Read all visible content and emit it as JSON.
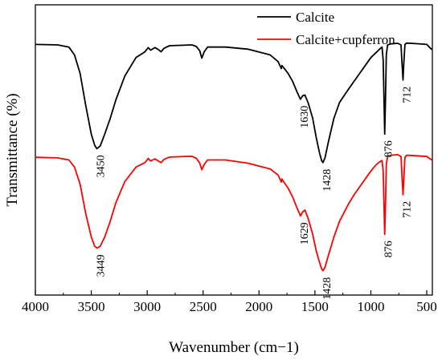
{
  "chart_data": {
    "type": "line",
    "xlabel": "Wavenumber (cm−1)",
    "ylabel": "Transmittance (%)",
    "xlim": [
      4000,
      450
    ],
    "x_reversed": true,
    "xticks": [
      4000,
      3500,
      3000,
      2500,
      2000,
      1500,
      1000,
      500
    ],
    "yticks_shown": false,
    "legend_position": "top-right",
    "series": [
      {
        "name": "Calcite",
        "color": "#000000",
        "points": [
          [
            4000,
            0.84
          ],
          [
            3800,
            0.838
          ],
          [
            3700,
            0.83
          ],
          [
            3650,
            0.8
          ],
          [
            3600,
            0.73
          ],
          [
            3550,
            0.61
          ],
          [
            3500,
            0.5
          ],
          [
            3470,
            0.458
          ],
          [
            3450,
            0.445
          ],
          [
            3420,
            0.455
          ],
          [
            3380,
            0.5
          ],
          [
            3330,
            0.56
          ],
          [
            3280,
            0.63
          ],
          [
            3200,
            0.72
          ],
          [
            3100,
            0.79
          ],
          [
            3020,
            0.812
          ],
          [
            2990,
            0.828
          ],
          [
            2970,
            0.818
          ],
          [
            2930,
            0.828
          ],
          [
            2900,
            0.82
          ],
          [
            2875,
            0.812
          ],
          [
            2850,
            0.825
          ],
          [
            2800,
            0.835
          ],
          [
            2600,
            0.838
          ],
          [
            2560,
            0.832
          ],
          [
            2530,
            0.815
          ],
          [
            2512,
            0.788
          ],
          [
            2490,
            0.812
          ],
          [
            2460,
            0.83
          ],
          [
            2300,
            0.83
          ],
          [
            2100,
            0.822
          ],
          [
            1900,
            0.8
          ],
          [
            1830,
            0.775
          ],
          [
            1800,
            0.748
          ],
          [
            1795,
            0.76
          ],
          [
            1780,
            0.752
          ],
          [
            1740,
            0.73
          ],
          [
            1700,
            0.7
          ],
          [
            1660,
            0.66
          ],
          [
            1630,
            0.632
          ],
          [
            1610,
            0.645
          ],
          [
            1590,
            0.648
          ],
          [
            1560,
            0.618
          ],
          [
            1520,
            0.56
          ],
          [
            1490,
            0.49
          ],
          [
            1460,
            0.43
          ],
          [
            1440,
            0.4
          ],
          [
            1428,
            0.392
          ],
          [
            1410,
            0.41
          ],
          [
            1380,
            0.47
          ],
          [
            1330,
            0.56
          ],
          [
            1280,
            0.62
          ],
          [
            1200,
            0.67
          ],
          [
            1150,
            0.7
          ],
          [
            1100,
            0.73
          ],
          [
            1050,
            0.76
          ],
          [
            1000,
            0.79
          ],
          [
            950,
            0.81
          ],
          [
            920,
            0.823
          ],
          [
            900,
            0.83
          ],
          [
            890,
            0.78
          ],
          [
            882,
            0.62
          ],
          [
            876,
            0.5
          ],
          [
            870,
            0.62
          ],
          [
            862,
            0.8
          ],
          [
            850,
            0.838
          ],
          [
            820,
            0.842
          ],
          [
            760,
            0.844
          ],
          [
            730,
            0.838
          ],
          [
            720,
            0.76
          ],
          [
            712,
            0.705
          ],
          [
            705,
            0.77
          ],
          [
            695,
            0.84
          ],
          [
            680,
            0.845
          ],
          [
            600,
            0.843
          ],
          [
            500,
            0.84
          ],
          [
            455,
            0.82
          ]
        ]
      },
      {
        "name": "Calcite+cupferron",
        "color": "#ff0000",
        "points": [
          [
            4000,
            0.412
          ],
          [
            3800,
            0.41
          ],
          [
            3700,
            0.402
          ],
          [
            3650,
            0.375
          ],
          [
            3600,
            0.31
          ],
          [
            3550,
            0.2
          ],
          [
            3500,
            0.11
          ],
          [
            3470,
            0.075
          ],
          [
            3449,
            0.068
          ],
          [
            3420,
            0.075
          ],
          [
            3380,
            0.11
          ],
          [
            3330,
            0.17
          ],
          [
            3280,
            0.24
          ],
          [
            3200,
            0.32
          ],
          [
            3100,
            0.375
          ],
          [
            3020,
            0.392
          ],
          [
            2990,
            0.408
          ],
          [
            2970,
            0.398
          ],
          [
            2930,
            0.406
          ],
          [
            2900,
            0.398
          ],
          [
            2875,
            0.392
          ],
          [
            2850,
            0.404
          ],
          [
            2800,
            0.413
          ],
          [
            2600,
            0.416
          ],
          [
            2560,
            0.408
          ],
          [
            2530,
            0.39
          ],
          [
            2512,
            0.365
          ],
          [
            2490,
            0.385
          ],
          [
            2460,
            0.402
          ],
          [
            2300,
            0.402
          ],
          [
            2100,
            0.39
          ],
          [
            1900,
            0.368
          ],
          [
            1830,
            0.345
          ],
          [
            1800,
            0.318
          ],
          [
            1795,
            0.33
          ],
          [
            1780,
            0.32
          ],
          [
            1740,
            0.295
          ],
          [
            1700,
            0.262
          ],
          [
            1660,
            0.22
          ],
          [
            1629,
            0.19
          ],
          [
            1610,
            0.205
          ],
          [
            1590,
            0.212
          ],
          [
            1560,
            0.18
          ],
          [
            1520,
            0.12
          ],
          [
            1490,
            0.06
          ],
          [
            1460,
            0.015
          ],
          [
            1440,
            -0.01
          ],
          [
            1428,
            -0.018
          ],
          [
            1410,
            -0.005
          ],
          [
            1380,
            0.04
          ],
          [
            1330,
            0.11
          ],
          [
            1280,
            0.17
          ],
          [
            1200,
            0.235
          ],
          [
            1150,
            0.27
          ],
          [
            1100,
            0.3
          ],
          [
            1050,
            0.33
          ],
          [
            1000,
            0.36
          ],
          [
            950,
            0.385
          ],
          [
            920,
            0.395
          ],
          [
            900,
            0.4
          ],
          [
            890,
            0.36
          ],
          [
            882,
            0.22
          ],
          [
            876,
            0.12
          ],
          [
            870,
            0.22
          ],
          [
            862,
            0.385
          ],
          [
            850,
            0.415
          ],
          [
            820,
            0.42
          ],
          [
            760,
            0.422
          ],
          [
            730,
            0.415
          ],
          [
            720,
            0.33
          ],
          [
            712,
            0.27
          ],
          [
            705,
            0.33
          ],
          [
            695,
            0.412
          ],
          [
            680,
            0.42
          ],
          [
            600,
            0.418
          ],
          [
            500,
            0.415
          ],
          [
            455,
            0.402
          ]
        ]
      }
    ],
    "annotations": [
      {
        "text": "3450",
        "x": 3450,
        "series": 0
      },
      {
        "text": "1630",
        "x": 1630,
        "series": 0
      },
      {
        "text": "1428",
        "x": 1428,
        "series": 0
      },
      {
        "text": "876",
        "x": 876,
        "series": 0
      },
      {
        "text": "712",
        "x": 712,
        "series": 0
      },
      {
        "text": "3449",
        "x": 3449,
        "series": 1
      },
      {
        "text": "1629",
        "x": 1629,
        "series": 1
      },
      {
        "text": "1428",
        "x": 1428,
        "series": 1
      },
      {
        "text": "876",
        "x": 876,
        "series": 1
      },
      {
        "text": "712",
        "x": 712,
        "series": 1
      }
    ]
  }
}
